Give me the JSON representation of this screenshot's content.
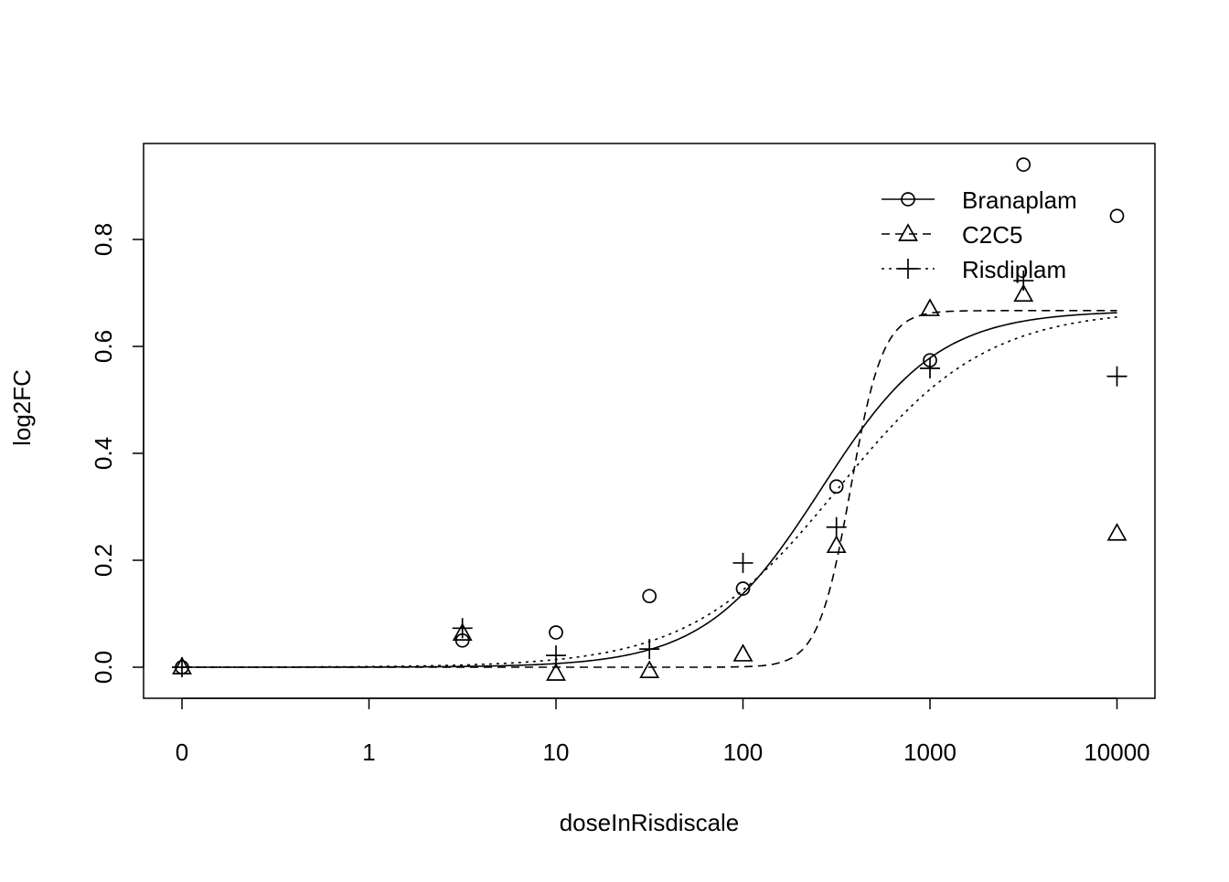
{
  "chart_data": {
    "type": "scatter",
    "title": "",
    "xlabel": "doseInRisdiscale",
    "ylabel": "log2FC",
    "x_scale": "log",
    "x_ticks": [
      0,
      1,
      10,
      100,
      1000,
      10000
    ],
    "x_tick_labels": [
      "0",
      "1",
      "10",
      "100",
      "1000",
      "10000"
    ],
    "y_ticks": [
      0.0,
      0.2,
      0.4,
      0.6,
      0.8
    ],
    "y_tick_labels": [
      "0.0",
      "0.2",
      "0.4",
      "0.6",
      "0.8"
    ],
    "ylim": [
      -0.06,
      0.98
    ],
    "grid": false,
    "legend_position": "top-right",
    "x": [
      0,
      3.16,
      10,
      31.6,
      100,
      316,
      1000,
      3162,
      10000
    ],
    "series": [
      {
        "name": "Branaplam",
        "marker": "circle",
        "line": "solid",
        "values": [
          0,
          0.05,
          0.065,
          0.133,
          0.147,
          0.338,
          0.574,
          0.94,
          0.844
        ],
        "fit": {
          "model": "log-logistic",
          "lower": 0,
          "upper": 0.667,
          "ed50": 262,
          "slope": 1.4
        }
      },
      {
        "name": "C2C5",
        "marker": "triangle",
        "line": "dashed",
        "values": [
          0,
          0.063,
          -0.012,
          -0.007,
          0.024,
          0.227,
          0.67,
          0.697,
          0.25
        ],
        "fit": {
          "model": "log-logistic",
          "lower": 0,
          "upper": 0.667,
          "ed50": 376,
          "slope": 5
        }
      },
      {
        "name": "Risdiplam",
        "marker": "plus",
        "line": "dotted",
        "values": [
          0,
          0.073,
          0.022,
          0.034,
          0.195,
          0.262,
          0.559,
          0.723,
          0.544
        ],
        "fit": {
          "model": "log-logistic",
          "lower": 0,
          "upper": 0.67,
          "ed50": 324,
          "slope": 1.1
        }
      }
    ]
  }
}
